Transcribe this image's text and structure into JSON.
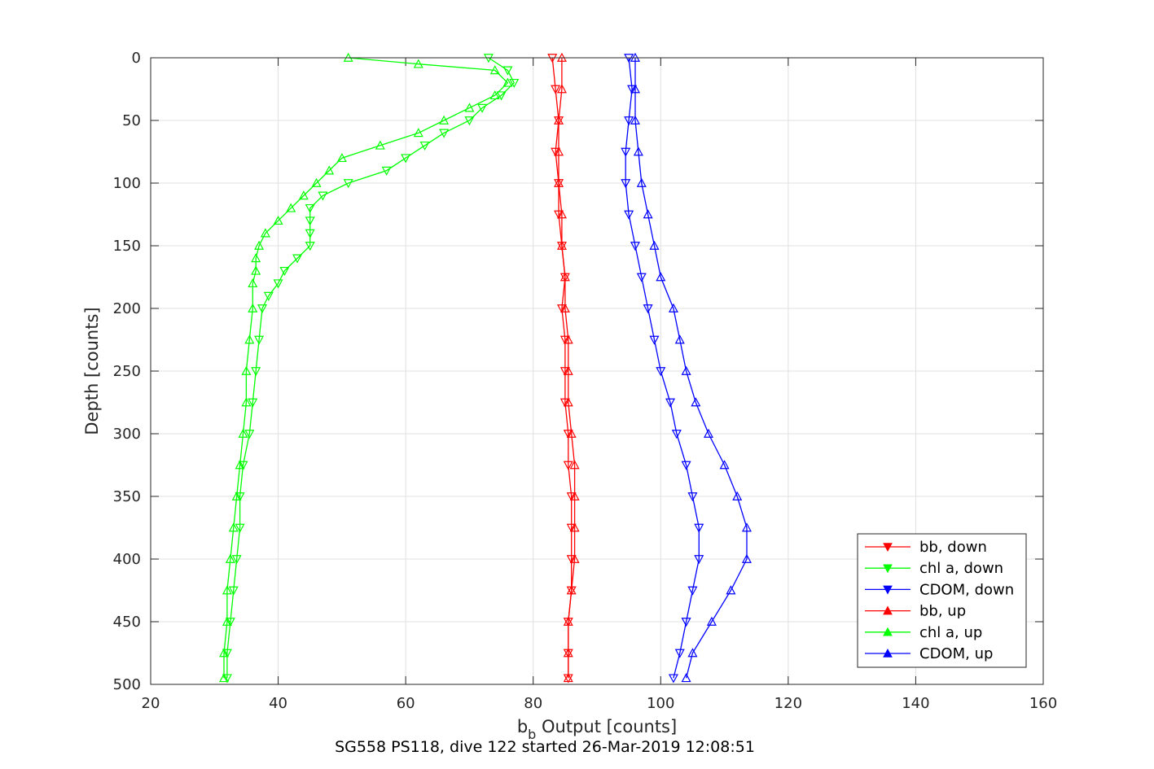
{
  "chart_data": {
    "type": "line",
    "caption": "SG558 PS118, dive 122 started 26-Mar-2019 12:08:51",
    "xlabel_main": "b",
    "xlabel_sub": "b",
    "xlabel_rest": " Output [counts]",
    "ylabel": "Depth [counts]",
    "xlim": [
      20,
      160
    ],
    "ylim": [
      0,
      500
    ],
    "y_reversed": true,
    "grid": true,
    "legend_position": "bottom-right",
    "x_ticks": [
      20,
      40,
      60,
      80,
      100,
      120,
      140,
      160
    ],
    "y_ticks": [
      0,
      50,
      100,
      150,
      200,
      250,
      300,
      350,
      400,
      450,
      500
    ],
    "series": [
      {
        "name": "bb, down",
        "color": "#ff0000",
        "marker": "triangle-down",
        "depth": [
          0,
          25,
          50,
          75,
          100,
          125,
          150,
          175,
          200,
          225,
          250,
          275,
          300,
          325,
          350,
          375,
          400,
          425,
          450,
          475,
          495
        ],
        "value": [
          83,
          83.5,
          84,
          83.5,
          84,
          84,
          84.5,
          85,
          84.5,
          85,
          85,
          85,
          85.5,
          85.5,
          86,
          86,
          86,
          86,
          85.5,
          85.5,
          85.5
        ]
      },
      {
        "name": "chl a, down",
        "color": "#00ff00",
        "marker": "triangle-down",
        "depth": [
          0,
          10,
          20,
          30,
          40,
          50,
          60,
          70,
          80,
          90,
          100,
          110,
          120,
          130,
          140,
          150,
          160,
          170,
          180,
          190,
          200,
          225,
          250,
          275,
          300,
          325,
          350,
          375,
          400,
          425,
          450,
          475,
          495
        ],
        "value": [
          73,
          76,
          77,
          75,
          72,
          70,
          66,
          63,
          60,
          57,
          51,
          47,
          45,
          45,
          45,
          45,
          43,
          41,
          40,
          38.5,
          37.5,
          37,
          36.5,
          36,
          35.5,
          34.5,
          34,
          34,
          33.5,
          33,
          32.5,
          32,
          32
        ]
      },
      {
        "name": "CDOM, down",
        "color": "#0000ff",
        "marker": "triangle-down",
        "depth": [
          0,
          25,
          50,
          75,
          100,
          125,
          150,
          175,
          200,
          225,
          250,
          275,
          300,
          325,
          350,
          375,
          400,
          425,
          450,
          475,
          495
        ],
        "value": [
          95,
          95.5,
          95,
          94.5,
          94.5,
          95,
          96,
          97,
          98,
          99,
          100,
          101.5,
          102.5,
          104,
          105,
          106,
          106,
          105,
          104,
          103,
          102
        ]
      },
      {
        "name": "bb, up",
        "color": "#ff0000",
        "marker": "triangle-up",
        "depth": [
          0,
          25,
          50,
          75,
          100,
          125,
          150,
          175,
          200,
          225,
          250,
          275,
          300,
          325,
          350,
          375,
          400,
          425,
          450,
          475,
          495
        ],
        "value": [
          84.5,
          84.5,
          84,
          84,
          84,
          84.5,
          84.5,
          85,
          85,
          85.5,
          85.5,
          85.5,
          86,
          86.5,
          86.5,
          86.5,
          86.5,
          86,
          85.5,
          85.5,
          85.5
        ]
      },
      {
        "name": "chl a, up",
        "color": "#00ff00",
        "marker": "triangle-up",
        "depth": [
          0,
          5,
          10,
          20,
          30,
          40,
          50,
          60,
          70,
          80,
          90,
          100,
          110,
          120,
          130,
          140,
          150,
          160,
          170,
          180,
          200,
          225,
          250,
          275,
          300,
          325,
          350,
          375,
          400,
          425,
          450,
          475,
          495
        ],
        "value": [
          51,
          62,
          74,
          76,
          74,
          70,
          66,
          62,
          56,
          50,
          48,
          46,
          44,
          42,
          40,
          38,
          37,
          36.5,
          36.5,
          36,
          36,
          35.5,
          35,
          35,
          34.5,
          34,
          33.5,
          33,
          32.5,
          32,
          32,
          31.5,
          31.5
        ]
      },
      {
        "name": "CDOM, up",
        "color": "#0000ff",
        "marker": "triangle-up",
        "depth": [
          0,
          25,
          50,
          75,
          100,
          125,
          150,
          175,
          200,
          225,
          250,
          275,
          300,
          325,
          350,
          375,
          400,
          425,
          450,
          475,
          495
        ],
        "value": [
          96,
          96,
          96,
          96.5,
          97,
          98,
          99,
          100,
          102,
          103,
          104,
          105.5,
          107.5,
          110,
          112,
          113.5,
          113.5,
          111,
          108,
          105,
          104
        ]
      }
    ]
  }
}
